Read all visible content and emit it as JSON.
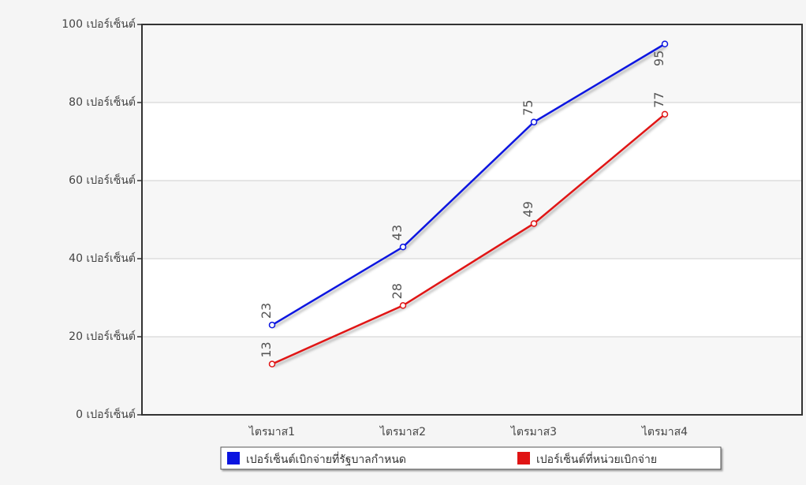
{
  "chart_data": {
    "type": "line",
    "categories": [
      "ไตรมาส1",
      "ไตรมาส2",
      "ไตรมาส3",
      "ไตรมาส4"
    ],
    "y_ticks": [
      "0 เปอร์เซ็นต์",
      "20 เปอร์เซ็นต์",
      "40 เปอร์เซ็นต์",
      "60 เปอร์เซ็นต์",
      "80 เปอร์เซ็นต์",
      "100 เปอร์เซ็นต์"
    ],
    "ylim": [
      0,
      100
    ],
    "grid": true,
    "legend_position": "bottom",
    "series": [
      {
        "name": "เปอร์เซ็นต์เบิกจ่ายที่รัฐบาลกำหนด",
        "color": "#0a14e0",
        "values": [
          23,
          43,
          75,
          95
        ]
      },
      {
        "name": "เปอร์เซ็นต์ที่หน่วยเบิกจ่าย",
        "color": "#e01414",
        "values": [
          13,
          28,
          49,
          77
        ]
      }
    ]
  }
}
